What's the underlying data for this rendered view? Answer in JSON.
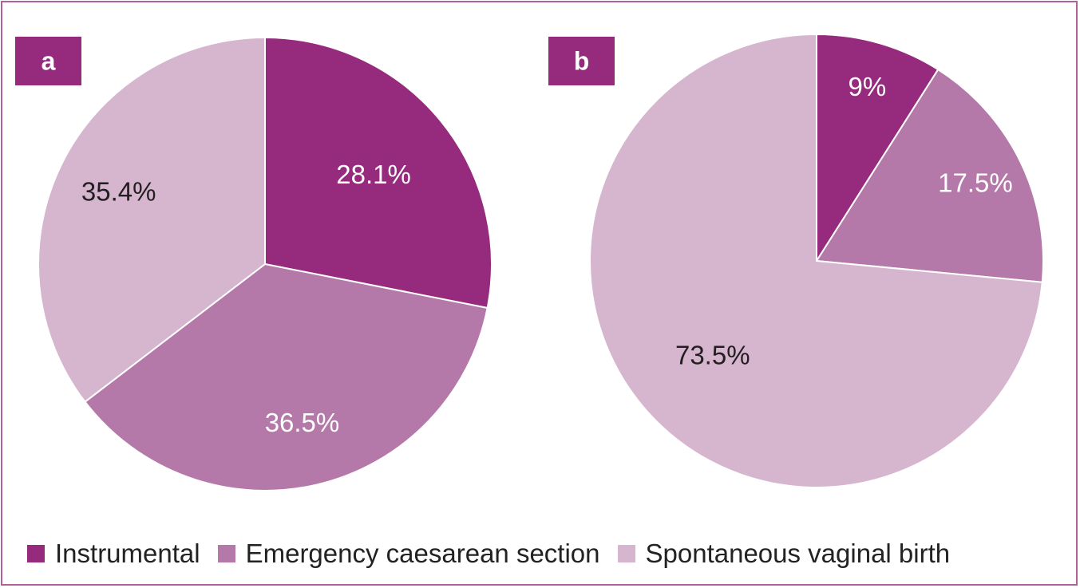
{
  "chart_data": [
    {
      "type": "pie",
      "panel_label": "a",
      "slices": [
        {
          "name": "Instrumental",
          "value": 28.1,
          "label": "28.1%",
          "color": "#962a7c",
          "label_color": "#ffffff"
        },
        {
          "name": "Emergency caesarean section",
          "value": 36.5,
          "label": "36.5%",
          "color": "#b479a8",
          "label_color": "#ffffff"
        },
        {
          "name": "Spontaneous vaginal birth",
          "value": 35.4,
          "label": "35.4%",
          "color": "#d6b5cf",
          "label_color": "#231f20"
        }
      ]
    },
    {
      "type": "pie",
      "panel_label": "b",
      "slices": [
        {
          "name": "Instrumental",
          "value": 9,
          "label": "9%",
          "color": "#962a7c",
          "label_color": "#ffffff"
        },
        {
          "name": "Emergency caesarean section",
          "value": 17.5,
          "label": "17.5%",
          "color": "#b479a8",
          "label_color": "#ffffff"
        },
        {
          "name": "Spontaneous vaginal birth",
          "value": 73.5,
          "label": "73.5%",
          "color": "#d6b5cf",
          "label_color": "#231f20"
        }
      ]
    }
  ],
  "legend": [
    {
      "label": "Instrumental",
      "color": "#962a7c"
    },
    {
      "label": "Emergency caesarean section",
      "color": "#b479a8"
    },
    {
      "label": "Spontaneous vaginal birth",
      "color": "#d6b5cf"
    }
  ],
  "colors": {
    "frame": "#b0609a",
    "panel_label_bg": "#962a7c"
  }
}
